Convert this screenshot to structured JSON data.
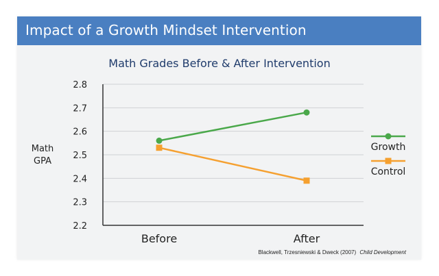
{
  "header": {
    "title": "Impact of a Growth Mindset Intervention"
  },
  "chart_data": {
    "type": "line",
    "title": "Math Grades Before & After Intervention",
    "ylabel_lines": [
      "Math",
      "GPA"
    ],
    "xlabel": "",
    "categories": [
      "Before",
      "After"
    ],
    "ylim": [
      2.2,
      2.8
    ],
    "yticks": [
      2.2,
      2.3,
      2.4,
      2.5,
      2.6,
      2.7,
      2.8
    ],
    "grid": true,
    "legend_position": "right",
    "series": [
      {
        "name": "Growth",
        "values": [
          2.56,
          2.68
        ],
        "color": "#4aa84a",
        "marker": "circle"
      },
      {
        "name": "Control",
        "values": [
          2.53,
          2.39
        ],
        "color": "#f5a030",
        "marker": "square"
      }
    ],
    "source": {
      "authors": "Blackwell, Trzesniewski & Dweck (2007)",
      "journal": "Child Development"
    }
  }
}
